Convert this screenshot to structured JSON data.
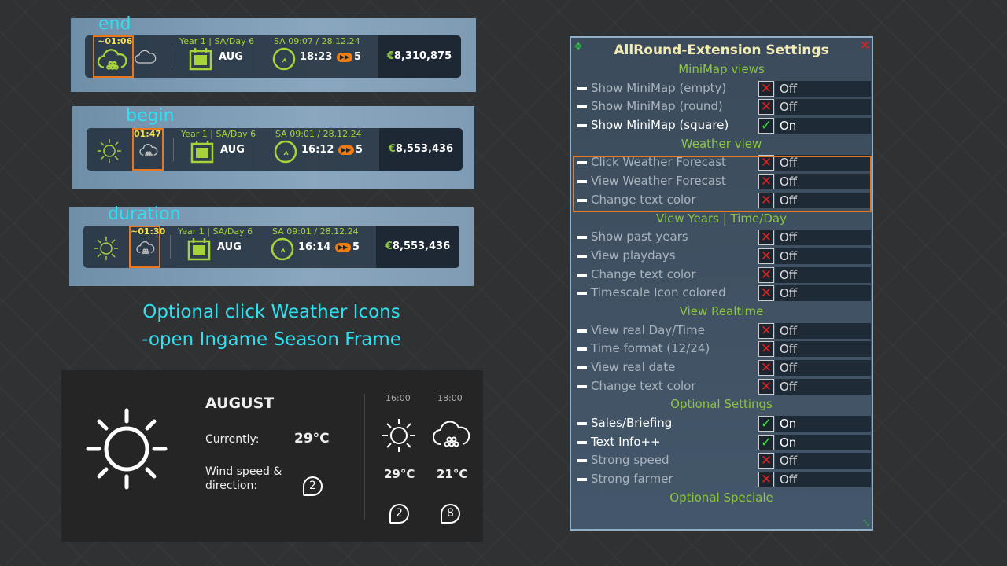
{
  "hud_bars": [
    {
      "caption": "end",
      "timer": "~01:06",
      "year": "Year 1 | SA/Day 6",
      "month": "AUG",
      "realtime": "SA 09:07 / 28.12.24",
      "time": "18:23",
      "speed": "5",
      "money_symbol": "€",
      "money": "8,310,875",
      "icons": [
        "cloud-rain-icon",
        "cloud-icon"
      ]
    },
    {
      "caption": "begin",
      "timer": "01:47",
      "year": "Year 1 | SA/Day 6",
      "month": "AUG",
      "realtime": "SA 09:01 / 28.12.24",
      "time": "16:12",
      "speed": "5",
      "money_symbol": "€",
      "money": "8,553,436",
      "icons": [
        "sun-icon",
        "cloud-rain-icon"
      ]
    },
    {
      "caption": "duration",
      "timer": "~01:30",
      "year": "Year 1 | SA/Day 6",
      "month": "AUG",
      "realtime": "SA 09:01 / 28.12.24",
      "time": "16:14",
      "speed": "5",
      "money_symbol": "€",
      "money": "8,553,436",
      "icons": [
        "sun-icon",
        "cloud-rain-icon"
      ]
    }
  ],
  "optional_text": [
    "Optional click Weather Icons",
    "-open Ingame Season Frame"
  ],
  "season_frame": {
    "month": "AUGUST",
    "currently_label": "Currently:",
    "current_temp": "29°C",
    "wind_label_1": "Wind speed &",
    "wind_label_2": "direction:",
    "wind": "2",
    "forecast": [
      {
        "time": "16:00",
        "icon": "sun-icon",
        "temp": "29°C",
        "wind": "2"
      },
      {
        "time": "18:00",
        "icon": "cloud-rain-icon",
        "temp": "21°C",
        "wind": "8"
      }
    ]
  },
  "settings": {
    "title": "AllRound-Extension Settings",
    "rows": [
      {
        "section": "MiniMap views"
      },
      {
        "label": "Show MiniMap (empty)",
        "value": "Off"
      },
      {
        "label": "Show MiniMap (round)",
        "value": "Off"
      },
      {
        "label": "Show MiniMap (square)",
        "value": "On"
      },
      {
        "section": "Weather view"
      },
      {
        "label": "Click Weather Forecast",
        "value": "Off"
      },
      {
        "label": "View Weather Forecast",
        "value": "Off"
      },
      {
        "label": "Change text color",
        "value": "Off"
      },
      {
        "section": "View Years | Time/Day"
      },
      {
        "label": "Show past years",
        "value": "Off"
      },
      {
        "label": "View playdays",
        "value": "Off"
      },
      {
        "label": "Change text color",
        "value": "Off"
      },
      {
        "label": "Timescale Icon colored",
        "value": "Off"
      },
      {
        "section": "View Realtime"
      },
      {
        "label": "View real Day/Time",
        "value": "Off"
      },
      {
        "label": "Time format (12/24)",
        "value": "Off"
      },
      {
        "label": "View real date",
        "value": "Off"
      },
      {
        "label": "Change text color",
        "value": "Off"
      },
      {
        "section": "Optional Settings"
      },
      {
        "label": "Sales/Briefing",
        "value": "On"
      },
      {
        "label": "Text Info++",
        "value": "On"
      },
      {
        "label": "Strong speed",
        "value": "Off"
      },
      {
        "label": "Strong farmer",
        "value": "Off"
      },
      {
        "section": "Optional Speciale"
      }
    ]
  },
  "colors": {
    "accent_green": "#8cc63f",
    "highlight_orange": "#e87722",
    "caption_cyan": "#2fe0f0",
    "off_red": "#e02020",
    "on_green": "#3ee03e"
  }
}
